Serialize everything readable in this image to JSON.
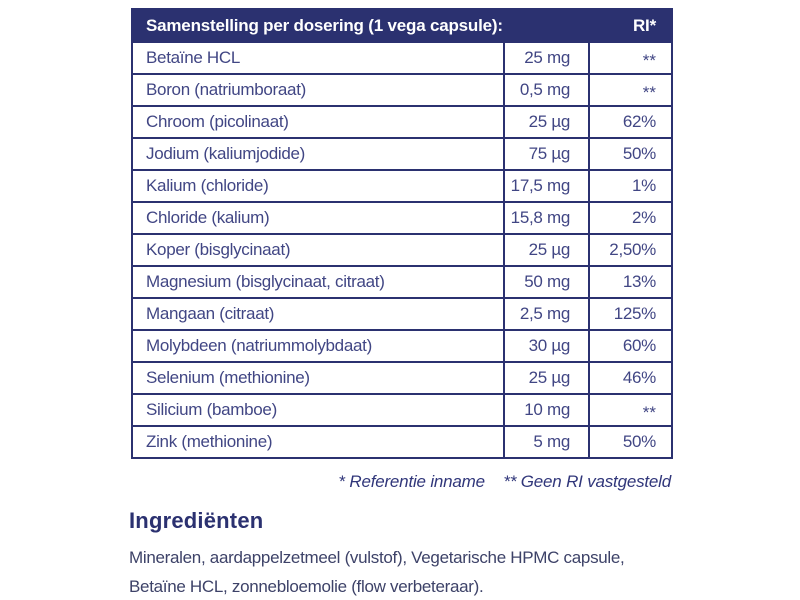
{
  "colors": {
    "header_bg": "#2b3170",
    "border": "#2b3170",
    "row_text": "#414684",
    "header_text": "#ffffff",
    "heading_text": "#2b3170",
    "body_text": "#3d4268",
    "page_bg": "#ffffff"
  },
  "table": {
    "header": {
      "title": "Samenstelling per dosering (1 vega capsule):",
      "ri": "RI*"
    },
    "rows": [
      {
        "name": "Betaïne HCL",
        "amount": "25 mg",
        "ri": "**"
      },
      {
        "name": "Boron (natriumboraat)",
        "amount": "0,5 mg",
        "ri": "**"
      },
      {
        "name": "Chroom (picolinaat)",
        "amount": "25 µg",
        "ri": "62%"
      },
      {
        "name": "Jodium (kaliumjodide)",
        "amount": "75 µg",
        "ri": "50%"
      },
      {
        "name": "Kalium (chloride)",
        "amount": "17,5 mg",
        "ri": "1%"
      },
      {
        "name": "Chloride (kalium)",
        "amount": "15,8 mg",
        "ri": "2%"
      },
      {
        "name": "Koper (bisglycinaat)",
        "amount": "25 µg",
        "ri": "2,50%"
      },
      {
        "name": "Magnesium (bisglycinaat, citraat)",
        "amount": "50 mg",
        "ri": "13%"
      },
      {
        "name": "Mangaan (citraat)",
        "amount": "2,5 mg",
        "ri": "125%"
      },
      {
        "name": "Molybdeen (natriummolybdaat)",
        "amount": "30 µg",
        "ri": "60%"
      },
      {
        "name": "Selenium (methionine)",
        "amount": "25 µg",
        "ri": "46%"
      },
      {
        "name": "Silicium (bamboe)",
        "amount": "10 mg",
        "ri": "**"
      },
      {
        "name": "Zink (methionine)",
        "amount": "5 mg",
        "ri": "50%"
      }
    ]
  },
  "footnote": {
    "reference_label": "* Referentie inname",
    "no_ri_label": "** Geen RI vastgesteld"
  },
  "ingredients": {
    "heading": "Ingrediënten",
    "text": "Mineralen, aardappelzetmeel (vulstof), Vegetarische HPMC capsule, Betaïne HCL, zonnebloemolie (flow verbeteraar)."
  }
}
